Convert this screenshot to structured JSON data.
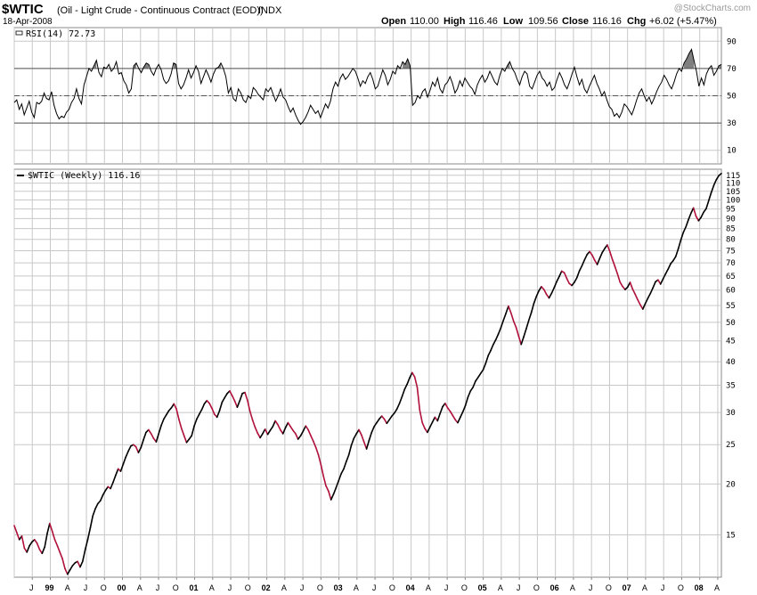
{
  "header": {
    "symbol": "$WTIC",
    "subtitle": "(Oil - Light Crude - Continuous Contract (EOD))",
    "exchange": "INDX",
    "date": "18-Apr-2008",
    "open_label": "Open",
    "open": "110.00",
    "high_label": "High",
    "high": "116.46",
    "low_label": "Low",
    "low": "109.56",
    "close_label": "Close",
    "close": "116.16",
    "chg_label": "Chg",
    "chg": "+6.02 (+5.47%)",
    "watermark": "@StockCharts.com"
  },
  "colors": {
    "up": "#000000",
    "down": "#b0103a",
    "grid": "#c8c8c8",
    "shade": "#555555"
  },
  "chart_data": [
    {
      "type": "line",
      "title": "RSI(14) 72.73",
      "legend": "RSI(14) 72.73",
      "ylim": [
        0,
        100
      ],
      "yticks": [
        10,
        30,
        50,
        70,
        90
      ],
      "reference_lines": [
        30,
        50,
        70
      ],
      "x_start": 1998.5,
      "x_end": 2008.3,
      "values": [
        45,
        47,
        40,
        44,
        36,
        41,
        46,
        38,
        34,
        45,
        44,
        46,
        52,
        48,
        47,
        53,
        43,
        37,
        33,
        35,
        34,
        38,
        40,
        45,
        48,
        55,
        48,
        44,
        58,
        64,
        70,
        68,
        72,
        76,
        67,
        64,
        71,
        70,
        73,
        68,
        70,
        75,
        66,
        67,
        61,
        58,
        52,
        55,
        72,
        74,
        70,
        67,
        71,
        74,
        73,
        68,
        65,
        70,
        73,
        69,
        62,
        59,
        61,
        66,
        74,
        73,
        59,
        55,
        58,
        63,
        69,
        63,
        67,
        72,
        68,
        59,
        64,
        69,
        65,
        60,
        66,
        70,
        71,
        74,
        70,
        64,
        52,
        56,
        48,
        46,
        55,
        52,
        47,
        45,
        50,
        48,
        56,
        54,
        51,
        49,
        47,
        55,
        53,
        56,
        51,
        46,
        50,
        55,
        49,
        47,
        42,
        38,
        41,
        36,
        32,
        29,
        31,
        34,
        38,
        43,
        40,
        37,
        39,
        34,
        39,
        44,
        41,
        46,
        55,
        60,
        57,
        63,
        66,
        62,
        64,
        67,
        70,
        68,
        63,
        57,
        61,
        59,
        64,
        67,
        62,
        55,
        57,
        63,
        69,
        65,
        58,
        62,
        68,
        66,
        72,
        70,
        75,
        73,
        77,
        72,
        43,
        45,
        50,
        48,
        53,
        55,
        49,
        54,
        60,
        57,
        63,
        55,
        52,
        58,
        60,
        64,
        59,
        52,
        55,
        61,
        57,
        63,
        60,
        57,
        55,
        51,
        58,
        62,
        65,
        60,
        63,
        68,
        64,
        60,
        58,
        65,
        70,
        68,
        72,
        75,
        70,
        67,
        62,
        58,
        64,
        68,
        66,
        57,
        55,
        60,
        65,
        68,
        63,
        61,
        57,
        60,
        54,
        56,
        62,
        67,
        63,
        58,
        55,
        60,
        66,
        71,
        64,
        58,
        62,
        55,
        52,
        57,
        61,
        65,
        59,
        55,
        50,
        53,
        47,
        42,
        40,
        35,
        37,
        34,
        38,
        44,
        42,
        39,
        36,
        41,
        47,
        52,
        55,
        50,
        46,
        49,
        44,
        48,
        53,
        57,
        60,
        65,
        62,
        58,
        55,
        60,
        66,
        70,
        68,
        74,
        77,
        81,
        84,
        76,
        68,
        57,
        63,
        58,
        66,
        70,
        72,
        65,
        68,
        72,
        73
      ],
      "last_value": 72.73
    },
    {
      "type": "line",
      "title": "$WTIC (Weekly) 116.16",
      "legend": "$WTIC (Weekly) 116.16",
      "scale": "log",
      "ylim": [
        11.8,
        119
      ],
      "yticks": [
        15,
        20,
        25,
        30,
        35,
        40,
        45,
        50,
        55,
        60,
        65,
        70,
        75,
        80,
        85,
        90,
        95,
        100,
        105,
        110,
        115
      ],
      "x_start": 1998.5,
      "x_end": 2008.3,
      "values": [
        15.8,
        15.2,
        14.6,
        14.9,
        13.9,
        13.6,
        14.1,
        14.4,
        14.6,
        14.3,
        13.8,
        13.5,
        14.0,
        15.1,
        16.0,
        15.3,
        14.6,
        14.1,
        13.6,
        13.1,
        12.4,
        12.0,
        12.3,
        12.6,
        12.8,
        12.9,
        12.5,
        12.9,
        13.8,
        14.6,
        15.6,
        16.7,
        17.4,
        17.9,
        18.2,
        18.8,
        19.3,
        19.7,
        19.5,
        20.2,
        21.0,
        21.8,
        21.5,
        22.4,
        23.3,
        24.1,
        24.8,
        25.0,
        24.7,
        23.9,
        24.6,
        25.7,
        26.8,
        27.2,
        26.6,
        25.9,
        25.4,
        26.6,
        27.9,
        28.9,
        29.6,
        30.3,
        30.8,
        31.5,
        30.6,
        28.8,
        27.4,
        26.3,
        25.3,
        25.8,
        26.3,
        27.8,
        28.9,
        29.7,
        30.5,
        31.5,
        32.1,
        31.6,
        30.7,
        29.7,
        29.2,
        30.3,
        31.8,
        32.6,
        33.4,
        33.9,
        33.0,
        32.0,
        30.9,
        32.1,
        33.4,
        33.6,
        32.2,
        30.2,
        28.8,
        27.6,
        26.7,
        26.0,
        26.6,
        27.3,
        26.5,
        27.1,
        27.7,
        28.6,
        28.0,
        27.2,
        26.6,
        27.5,
        28.3,
        27.7,
        27.1,
        26.6,
        25.8,
        26.3,
        27.0,
        27.8,
        27.2,
        26.3,
        25.5,
        24.6,
        23.6,
        22.3,
        20.9,
        19.8,
        19.2,
        18.3,
        18.9,
        19.6,
        20.4,
        21.2,
        21.8,
        22.7,
        23.6,
        24.9,
        25.9,
        26.6,
        27.2,
        26.4,
        25.4,
        24.4,
        25.6,
        26.8,
        27.7,
        28.3,
        28.9,
        29.4,
        28.9,
        28.2,
        28.8,
        29.4,
        29.9,
        30.6,
        31.6,
        32.8,
        34.2,
        35.2,
        36.5,
        37.6,
        36.7,
        34.6,
        30.4,
        28.3,
        27.4,
        26.8,
        27.6,
        28.4,
        29.2,
        28.6,
        29.8,
        31.0,
        31.6,
        30.8,
        30.2,
        29.5,
        28.8,
        28.3,
        29.2,
        30.1,
        31.2,
        32.7,
        33.9,
        34.6,
        35.8,
        36.6,
        37.4,
        38.2,
        39.6,
        41.4,
        42.6,
        44.1,
        45.3,
        46.8,
        48.5,
        50.6,
        52.6,
        54.8,
        52.7,
        50.4,
        48.6,
        46.3,
        44.1,
        46.0,
        48.2,
        50.5,
        52.8,
        55.6,
        57.9,
        59.8,
        61.2,
        60.2,
        58.6,
        57.4,
        58.9,
        60.8,
        62.9,
        64.8,
        66.8,
        66.2,
        64.1,
        62.3,
        61.6,
        62.7,
        64.4,
        66.9,
        68.9,
        71.2,
        73.4,
        74.6,
        73.2,
        71.1,
        69.4,
        71.8,
        74.2,
        76.0,
        77.5,
        74.6,
        71.4,
        68.6,
        65.8,
        62.8,
        61.3,
        60.2,
        61.0,
        62.7,
        60.3,
        58.6,
        56.8,
        55.2,
        53.9,
        55.6,
        57.3,
        58.9,
        60.8,
        62.9,
        63.6,
        62.1,
        63.9,
        65.8,
        67.6,
        69.7,
        70.9,
        72.6,
        75.8,
        79.7,
        83.2,
        85.9,
        89.4,
        92.7,
        95.6,
        91.2,
        88.9,
        90.6,
        93.3,
        95.1,
        99.6,
        104.2,
        108.6,
        112.1,
        114.8,
        116.16
      ],
      "last_value": 116.16
    }
  ],
  "x_axis": [
    {
      "label": "J",
      "bold": false
    },
    {
      "label": "99",
      "bold": true
    },
    {
      "label": "A",
      "bold": false
    },
    {
      "label": "J",
      "bold": false
    },
    {
      "label": "O",
      "bold": false
    },
    {
      "label": "00",
      "bold": true
    },
    {
      "label": "A",
      "bold": false
    },
    {
      "label": "J",
      "bold": false
    },
    {
      "label": "O",
      "bold": false
    },
    {
      "label": "01",
      "bold": true
    },
    {
      "label": "A",
      "bold": false
    },
    {
      "label": "J",
      "bold": false
    },
    {
      "label": "O",
      "bold": false
    },
    {
      "label": "02",
      "bold": true
    },
    {
      "label": "A",
      "bold": false
    },
    {
      "label": "J",
      "bold": false
    },
    {
      "label": "O",
      "bold": false
    },
    {
      "label": "03",
      "bold": true
    },
    {
      "label": "A",
      "bold": false
    },
    {
      "label": "J",
      "bold": false
    },
    {
      "label": "O",
      "bold": false
    },
    {
      "label": "04",
      "bold": true
    },
    {
      "label": "A",
      "bold": false
    },
    {
      "label": "J",
      "bold": false
    },
    {
      "label": "O",
      "bold": false
    },
    {
      "label": "05",
      "bold": true
    },
    {
      "label": "A",
      "bold": false
    },
    {
      "label": "J",
      "bold": false
    },
    {
      "label": "O",
      "bold": false
    },
    {
      "label": "06",
      "bold": true
    },
    {
      "label": "A",
      "bold": false
    },
    {
      "label": "J",
      "bold": false
    },
    {
      "label": "O",
      "bold": false
    },
    {
      "label": "07",
      "bold": true
    },
    {
      "label": "A",
      "bold": false
    },
    {
      "label": "J",
      "bold": false
    },
    {
      "label": "O",
      "bold": false
    },
    {
      "label": "08",
      "bold": true
    },
    {
      "label": "A",
      "bold": false
    }
  ]
}
